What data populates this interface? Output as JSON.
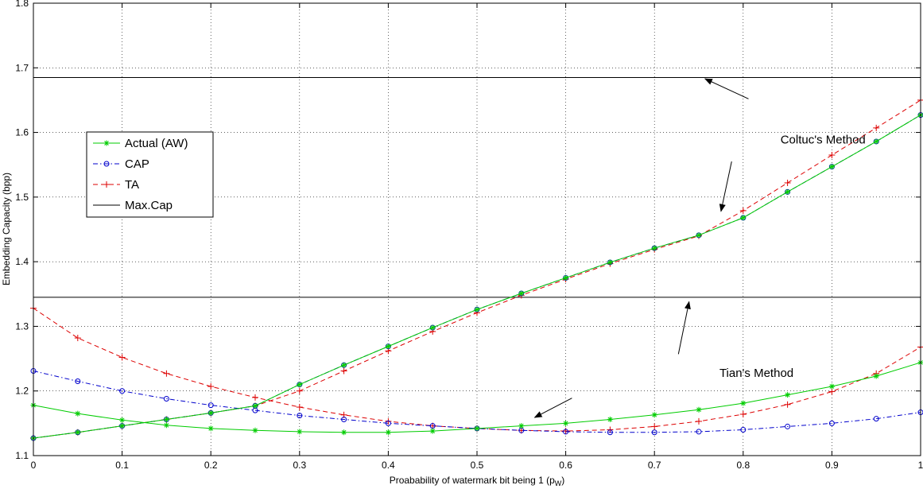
{
  "chart_data": {
    "type": "line",
    "xlabel": "Proabability of watermark bit being 1 (p",
    "xlabel_sub": "W",
    "xlabel_close": ")",
    "ylabel": "Embedding Capacity (bpp)",
    "xlim": [
      0,
      1
    ],
    "ylim": [
      1.1,
      1.8
    ],
    "xticks": [
      "0",
      "0.1",
      "0.2",
      "0.3",
      "0.4",
      "0.5",
      "0.6",
      "0.7",
      "0.8",
      "0.9",
      "1"
    ],
    "yticks": [
      "1.1",
      "1.2",
      "1.3",
      "1.4",
      "1.5",
      "1.6",
      "1.7",
      "1.8"
    ],
    "grid": true,
    "legend_position": "middle-left",
    "x": [
      0,
      0.05,
      0.1,
      0.15,
      0.2,
      0.25,
      0.3,
      0.35,
      0.4,
      0.45,
      0.5,
      0.55,
      0.6,
      0.65,
      0.7,
      0.75,
      0.8,
      0.85,
      0.9,
      0.95,
      1.0
    ],
    "series": [
      {
        "name": "Actual (AW)",
        "color": "#00cc00",
        "marker": "star",
        "dash": "solid",
        "group": "tian",
        "values": [
          1.178,
          1.165,
          1.155,
          1.147,
          1.142,
          1.139,
          1.137,
          1.136,
          1.136,
          1.138,
          1.142,
          1.146,
          1.15,
          1.156,
          1.163,
          1.171,
          1.181,
          1.194,
          1.207,
          1.223,
          1.244
        ]
      },
      {
        "name": "CAP",
        "color": "#0000cc",
        "marker": "circle",
        "dash": "dashdot",
        "group": "tian",
        "values": [
          1.231,
          1.215,
          1.2,
          1.188,
          1.178,
          1.17,
          1.162,
          1.156,
          1.15,
          1.146,
          1.142,
          1.139,
          1.137,
          1.136,
          1.136,
          1.137,
          1.14,
          1.145,
          1.15,
          1.157,
          1.167
        ]
      },
      {
        "name": "TA",
        "color": "#dd0000",
        "marker": "plus",
        "dash": "dashed",
        "group": "tian",
        "values": [
          1.328,
          1.282,
          1.252,
          1.227,
          1.207,
          1.19,
          1.175,
          1.163,
          1.153,
          1.146,
          1.142,
          1.139,
          1.138,
          1.14,
          1.145,
          1.153,
          1.164,
          1.179,
          1.199,
          1.227,
          1.268
        ]
      },
      {
        "name": "Actual (AW)",
        "color": "#00cc00",
        "marker": "star",
        "dash": "solid",
        "group": "coltuc",
        "values": [
          1.127,
          1.136,
          1.146,
          1.156,
          1.166,
          1.177,
          1.21,
          1.24,
          1.269,
          1.298,
          1.326,
          1.351,
          1.375,
          1.399,
          1.421,
          1.441,
          1.468,
          1.508,
          1.547,
          1.586,
          1.627
        ]
      },
      {
        "name": "CAP",
        "color": "#0000cc",
        "marker": "circle",
        "dash": "dashdot",
        "group": "coltuc",
        "values": [
          1.127,
          1.136,
          1.146,
          1.156,
          1.166,
          1.177,
          1.21,
          1.24,
          1.269,
          1.298,
          1.326,
          1.351,
          1.375,
          1.399,
          1.421,
          1.441,
          1.468,
          1.508,
          1.547,
          1.586,
          1.627
        ]
      },
      {
        "name": "TA",
        "color": "#dd0000",
        "marker": "plus",
        "dash": "dashed",
        "group": "coltuc",
        "values": [
          1.127,
          1.136,
          1.146,
          1.156,
          1.166,
          1.177,
          1.2,
          1.231,
          1.262,
          1.292,
          1.321,
          1.348,
          1.373,
          1.397,
          1.419,
          1.44,
          1.479,
          1.522,
          1.565,
          1.607,
          1.65
        ]
      }
    ],
    "hlines": [
      {
        "name": "Max.Cap",
        "value": 1.685,
        "color": "#000000"
      },
      {
        "name": "Max.Cap",
        "value": 1.345,
        "color": "#000000"
      }
    ],
    "legend": [
      {
        "label": "Actual (AW)",
        "color": "#00cc00",
        "marker": "star",
        "dash": "solid"
      },
      {
        "label": "CAP",
        "color": "#0000cc",
        "marker": "circle",
        "dash": "dashdot"
      },
      {
        "label": "TA",
        "color": "#dd0000",
        "marker": "plus",
        "dash": "dashed"
      },
      {
        "label": "Max.Cap",
        "color": "#000000",
        "marker": "none",
        "dash": "solid"
      }
    ],
    "annotations": [
      {
        "text": "Coltuc's Method",
        "label_x": 0.89,
        "label_y": 1.589,
        "arrows": [
          {
            "from": [
              0.806,
              1.652
            ],
            "to": [
              0.757,
              1.683
            ]
          },
          {
            "from": [
              0.787,
              1.555
            ],
            "to": [
              0.775,
              1.478
            ]
          }
        ]
      },
      {
        "text": "Tian's Method",
        "label_x": 0.815,
        "label_y": 1.228,
        "arrows": [
          {
            "from": [
              0.727,
              1.257
            ],
            "to": [
              0.739,
              1.338
            ]
          },
          {
            "from": [
              0.607,
              1.189
            ],
            "to": [
              0.565,
              1.159
            ]
          }
        ]
      }
    ]
  }
}
